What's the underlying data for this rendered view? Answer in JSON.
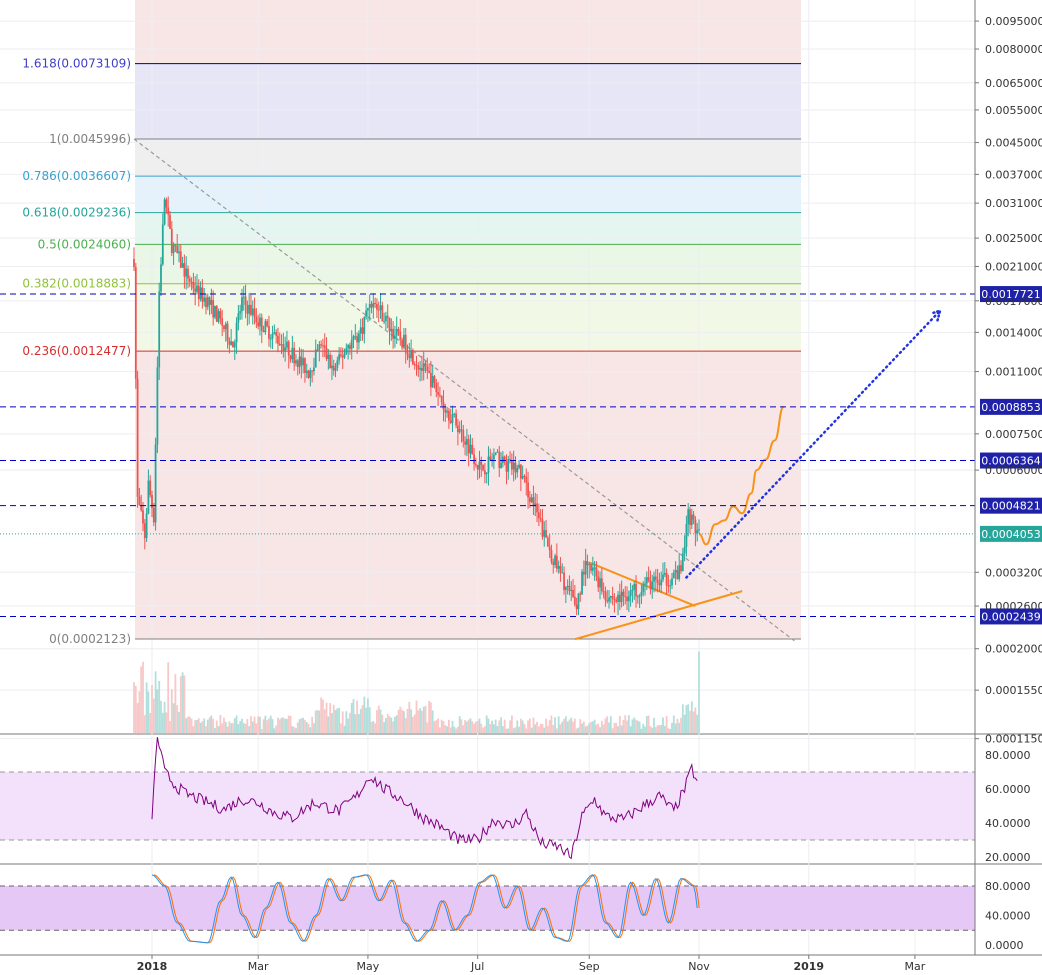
{
  "colors": {
    "background": "#ffffff",
    "up_candle": "#26a69a",
    "down_candle": "#ef5350",
    "fib_line": "#000080",
    "dashed_level": "#0000c0",
    "current_price": "#26a69a",
    "triangle": "#f7931a",
    "projection_dotted": "#2233dd",
    "rsi_line": "#800080",
    "stoch_k": "#2196f3",
    "stoch_d": "#ff6d00",
    "rsi_band": "#f3e0fb",
    "stoch_band": "#e5c8f6"
  },
  "chart_data": [
    {
      "type": "candlestick",
      "panel": "price",
      "scale": "log",
      "x_tick_labels": [
        "2018",
        "Mar",
        "May",
        "Jul",
        "Sep",
        "Nov",
        "2019",
        "Mar"
      ],
      "y_tick_labels": [
        "0.0095000",
        "0.0080000",
        "0.0065000",
        "0.0055000",
        "0.0045000",
        "0.0037000",
        "0.0031000",
        "0.0025000",
        "0.0021000",
        "0.0017000",
        "0.0014000",
        "0.0011000",
        "0.0007500",
        "0.0006000",
        "0.0003200",
        "0.0002600",
        "0.0002000",
        "0.0001550",
        "0.0001150"
      ],
      "fibonacci": [
        {
          "label": "1.618(0.0073109)",
          "value": 0.0073109,
          "color": "#3f3fc9"
        },
        {
          "label": "1(0.0045996)",
          "value": 0.0045996,
          "color": "#808080"
        },
        {
          "label": "0.786(0.0036607)",
          "value": 0.0036607,
          "color": "#3aa0d0"
        },
        {
          "label": "0.618(0.0029236)",
          "value": 0.0029236,
          "color": "#26a69a"
        },
        {
          "label": "0.5(0.0024060)",
          "value": 0.002406,
          "color": "#4caf50"
        },
        {
          "label": "0.382(0.0018883)",
          "value": 0.0018883,
          "color": "#8fc33a"
        },
        {
          "label": "0.236(0.0012477)",
          "value": 0.0012477,
          "color": "#d32f2f"
        },
        {
          "label": "0(0.0002123)",
          "value": 0.0002123,
          "color": "#808080"
        }
      ],
      "horizontal_levels": [
        {
          "label": "0.0017721",
          "value": 0.0017721
        },
        {
          "label": "0.0008853",
          "value": 0.0008853
        },
        {
          "label": "0.0006364",
          "value": 0.0006364
        },
        {
          "label": "0.0004821",
          "value": 0.0004821
        },
        {
          "label": "0.0002439",
          "value": 0.0002439
        }
      ],
      "current_price": {
        "label": "0.0004053",
        "value": 0.0004053
      },
      "close_series": [
        [
          "2017-12-22",
          0.0022
        ],
        [
          "2017-12-24",
          0.0005
        ],
        [
          "2017-12-26",
          0.00045
        ],
        [
          "2017-12-28",
          0.0004
        ],
        [
          "2017-12-30",
          0.00055
        ],
        [
          "2018-01-02",
          0.00045
        ],
        [
          "2018-01-05",
          0.0018
        ],
        [
          "2018-01-08",
          0.0032
        ],
        [
          "2018-01-12",
          0.0024
        ],
        [
          "2018-01-16",
          0.0022
        ],
        [
          "2018-01-20",
          0.002
        ],
        [
          "2018-01-26",
          0.0018
        ],
        [
          "2018-02-01",
          0.0017
        ],
        [
          "2018-02-08",
          0.0015
        ],
        [
          "2018-02-15",
          0.0013
        ],
        [
          "2018-02-20",
          0.0017
        ],
        [
          "2018-02-25",
          0.0016
        ],
        [
          "2018-03-01",
          0.0015
        ],
        [
          "2018-03-08",
          0.0014
        ],
        [
          "2018-03-15",
          0.0013
        ],
        [
          "2018-03-22",
          0.0012
        ],
        [
          "2018-03-29",
          0.0011
        ],
        [
          "2018-04-05",
          0.0013
        ],
        [
          "2018-04-12",
          0.0011
        ],
        [
          "2018-04-20",
          0.0013
        ],
        [
          "2018-04-27",
          0.0014
        ],
        [
          "2018-05-02",
          0.0017
        ],
        [
          "2018-05-08",
          0.0016
        ],
        [
          "2018-05-15",
          0.0014
        ],
        [
          "2018-05-22",
          0.0013
        ],
        [
          "2018-05-29",
          0.00115
        ],
        [
          "2018-06-05",
          0.00105
        ],
        [
          "2018-06-12",
          0.0009
        ],
        [
          "2018-06-19",
          0.0008
        ],
        [
          "2018-06-26",
          0.0007
        ],
        [
          "2018-07-03",
          0.0006
        ],
        [
          "2018-07-10",
          0.00065
        ],
        [
          "2018-07-17",
          0.00062
        ],
        [
          "2018-07-24",
          0.0006
        ],
        [
          "2018-07-31",
          0.0005
        ],
        [
          "2018-08-07",
          0.0004
        ],
        [
          "2018-08-14",
          0.00033
        ],
        [
          "2018-08-21",
          0.00028
        ],
        [
          "2018-08-25",
          0.00026
        ],
        [
          "2018-08-29",
          0.00033
        ],
        [
          "2018-09-04",
          0.00032
        ],
        [
          "2018-09-10",
          0.00028
        ],
        [
          "2018-09-16",
          0.00027
        ],
        [
          "2018-09-22",
          0.00028
        ],
        [
          "2018-09-28",
          0.00029
        ],
        [
          "2018-10-04",
          0.0003
        ],
        [
          "2018-10-10",
          0.0003
        ],
        [
          "2018-10-16",
          0.00031
        ],
        [
          "2018-10-22",
          0.00032
        ],
        [
          "2018-10-26",
          0.00046
        ],
        [
          "2018-10-30",
          0.00042
        ],
        [
          "2018-11-01",
          0.0004
        ]
      ],
      "projection_path": [
        [
          "2018-11-01",
          0.000405
        ],
        [
          "2018-11-05",
          0.00038
        ],
        [
          "2018-11-10",
          0.00043
        ],
        [
          "2018-11-15",
          0.00044
        ],
        [
          "2018-11-20",
          0.00048
        ],
        [
          "2018-11-25",
          0.00046
        ],
        [
          "2018-11-30",
          0.00052
        ],
        [
          "2018-12-03",
          0.0006
        ],
        [
          "2018-12-08",
          0.00064
        ],
        [
          "2018-12-13",
          0.00072
        ],
        [
          "2018-12-18",
          0.000885
        ]
      ],
      "target_arrow": {
        "from": [
          "2018-10-25",
          0.00031
        ],
        "to": [
          "2019-03-15",
          0.0016
        ]
      },
      "triangle": {
        "upper": [
          [
            "2018-09-01",
            0.00034
          ],
          [
            "2018-10-30",
            0.00026
          ]
        ],
        "lower": [
          [
            "2018-08-24",
            0.000212
          ],
          [
            "2018-11-25",
            0.000285
          ]
        ]
      },
      "downtrend_line": {
        "from": [
          "2017-12-22",
          0.0046
        ],
        "to": [
          "2018-12-24",
          0.00021
        ]
      }
    },
    {
      "type": "line",
      "panel": "rsi",
      "y_tick_labels": [
        "80.0000",
        "60.0000",
        "40.0000",
        "20.0000"
      ],
      "ylim": [
        15,
        95
      ],
      "bands": [
        30,
        70
      ],
      "series": [
        {
          "values": [
            [
              "2018-01-01",
              45
            ],
            [
              "2018-01-04",
              91
            ],
            [
              "2018-01-08",
              70
            ],
            [
              "2018-01-14",
              62
            ],
            [
              "2018-01-20",
              57
            ],
            [
              "2018-02-01",
              52
            ],
            [
              "2018-02-10",
              48
            ],
            [
              "2018-02-20",
              54
            ],
            [
              "2018-03-01",
              52
            ],
            [
              "2018-03-10",
              46
            ],
            [
              "2018-03-20",
              43
            ],
            [
              "2018-04-01",
              52
            ],
            [
              "2018-04-15",
              47
            ],
            [
              "2018-04-25",
              56
            ],
            [
              "2018-05-02",
              68
            ],
            [
              "2018-05-10",
              60
            ],
            [
              "2018-05-20",
              54
            ],
            [
              "2018-06-01",
              43
            ],
            [
              "2018-06-10",
              38
            ],
            [
              "2018-06-20",
              30
            ],
            [
              "2018-07-01",
              30
            ],
            [
              "2018-07-10",
              42
            ],
            [
              "2018-07-20",
              38
            ],
            [
              "2018-07-28",
              46
            ],
            [
              "2018-08-05",
              28
            ],
            [
              "2018-08-15",
              26
            ],
            [
              "2018-08-22",
              20
            ],
            [
              "2018-08-28",
              44
            ],
            [
              "2018-09-04",
              54
            ],
            [
              "2018-09-10",
              44
            ],
            [
              "2018-09-20",
              42
            ],
            [
              "2018-10-01",
              50
            ],
            [
              "2018-10-10",
              56
            ],
            [
              "2018-10-18",
              47
            ],
            [
              "2018-10-24",
              60
            ],
            [
              "2018-10-28",
              72
            ],
            [
              "2018-11-01",
              61
            ]
          ]
        }
      ]
    },
    {
      "type": "line",
      "panel": "stochastic",
      "y_tick_labels": [
        "80.0000",
        "40.0000",
        "0.0000"
      ],
      "ylim": [
        -3,
        100
      ],
      "bands": [
        20,
        80
      ],
      "series": [
        {
          "values": [
            [
              "2018-01-01",
              95
            ],
            [
              "2018-01-08",
              80
            ],
            [
              "2018-01-15",
              30
            ],
            [
              "2018-01-22",
              5
            ],
            [
              "2018-02-01",
              3
            ],
            [
              "2018-02-08",
              60
            ],
            [
              "2018-02-14",
              92
            ],
            [
              "2018-02-20",
              40
            ],
            [
              "2018-02-27",
              10
            ],
            [
              "2018-03-05",
              50
            ],
            [
              "2018-03-12",
              85
            ],
            [
              "2018-03-19",
              30
            ],
            [
              "2018-03-26",
              5
            ],
            [
              "2018-04-02",
              40
            ],
            [
              "2018-04-09",
              90
            ],
            [
              "2018-04-16",
              60
            ],
            [
              "2018-04-23",
              92
            ],
            [
              "2018-04-30",
              95
            ],
            [
              "2018-05-07",
              60
            ],
            [
              "2018-05-14",
              88
            ],
            [
              "2018-05-21",
              30
            ],
            [
              "2018-05-28",
              5
            ],
            [
              "2018-06-04",
              20
            ],
            [
              "2018-06-11",
              60
            ],
            [
              "2018-06-18",
              20
            ],
            [
              "2018-06-25",
              40
            ],
            [
              "2018-07-02",
              85
            ],
            [
              "2018-07-09",
              95
            ],
            [
              "2018-07-16",
              50
            ],
            [
              "2018-07-23",
              80
            ],
            [
              "2018-07-30",
              20
            ],
            [
              "2018-08-06",
              50
            ],
            [
              "2018-08-13",
              10
            ],
            [
              "2018-08-20",
              5
            ],
            [
              "2018-08-27",
              80
            ],
            [
              "2018-09-03",
              95
            ],
            [
              "2018-09-10",
              30
            ],
            [
              "2018-09-17",
              10
            ],
            [
              "2018-09-24",
              85
            ],
            [
              "2018-10-01",
              40
            ],
            [
              "2018-10-08",
              90
            ],
            [
              "2018-10-15",
              30
            ],
            [
              "2018-10-22",
              90
            ],
            [
              "2018-10-29",
              80
            ],
            [
              "2018-11-01",
              40
            ]
          ]
        }
      ]
    }
  ]
}
